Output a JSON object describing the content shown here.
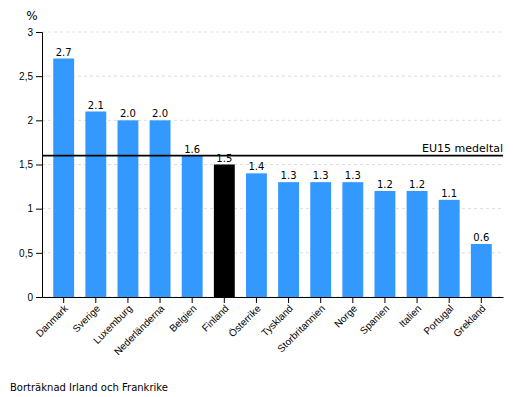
{
  "chart_data": {
    "type": "bar",
    "categories": [
      "Danmark",
      "Sverige",
      "Luxemburg",
      "Nederländerna",
      "Belgien",
      "Finland",
      "Österrike",
      "Tyskland",
      "Storbritannien",
      "Norge",
      "Spanien",
      "Italien",
      "Portugal",
      "Grekland"
    ],
    "values": [
      2.7,
      2.1,
      2.0,
      2.0,
      1.6,
      1.5,
      1.4,
      1.3,
      1.3,
      1.3,
      1.2,
      1.2,
      1.1,
      0.6
    ],
    "value_labels": [
      "2.7",
      "2.1",
      "2.0",
      "2.0",
      "1.6",
      "1.5",
      "1.4",
      "1.3",
      "1.3",
      "1.3",
      "1.2",
      "1.2",
      "1.1",
      "0.6"
    ],
    "data_labels": true,
    "colors": [
      "#3399FF",
      "#3399FF",
      "#3399FF",
      "#3399FF",
      "#3399FF",
      "#000000",
      "#3399FF",
      "#3399FF",
      "#3399FF",
      "#3399FF",
      "#3399FF",
      "#3399FF",
      "#3399FF",
      "#3399FF"
    ],
    "ylabel": "%",
    "ylim": [
      0,
      3.0
    ],
    "yticks": [
      0,
      {
        "value": 0.5,
        "label": "0,5"
      },
      1,
      {
        "value": 1.5,
        "label": "1,5"
      },
      2,
      {
        "value": 2.5,
        "label": "2,5"
      },
      3
    ],
    "grid": true,
    "annotations": [
      {
        "type": "hline",
        "y": 1.6,
        "text": "EU15 medeltal"
      }
    ],
    "footnote": "Borträknad Irland och Frankrike"
  }
}
